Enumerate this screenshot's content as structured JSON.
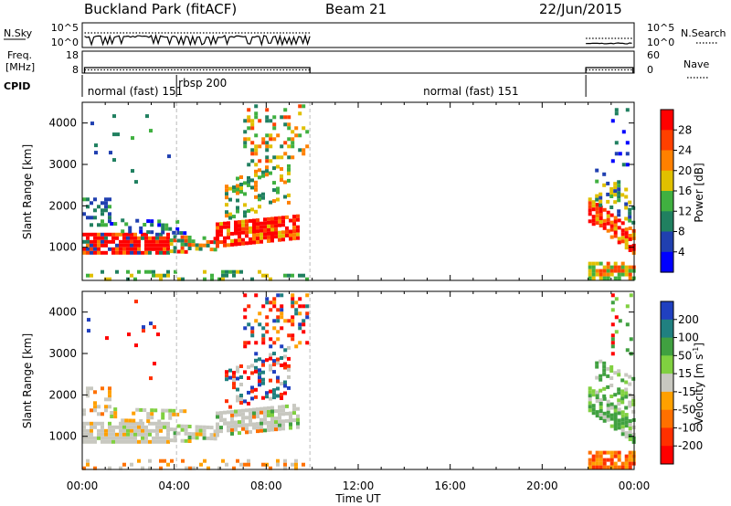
{
  "header": {
    "site": "Buckland Park (fitACF)",
    "beam": "Beam 21",
    "date": "22/Jun/2015"
  },
  "side_labels": {
    "nsky": "N.Sky",
    "freq_line1": "Freq.",
    "freq_line2": "[MHz]",
    "cpid": "CPID",
    "nsearch": "N.Search",
    "nave": "Nave"
  },
  "small_axes": {
    "noise_left_top": "10^5",
    "noise_left_bottom": "10^0",
    "noise_right_top": "10^5",
    "noise_right_bottom": "10^0",
    "freq_left_top": "18",
    "freq_left_bottom": "8",
    "nave_right_top": "60",
    "nave_right_bottom": "0"
  },
  "cpid_labels": [
    {
      "text": "normal (fast) 151",
      "t": 0.15
    },
    {
      "text": "rbsp 200",
      "t": 4.1
    },
    {
      "text": "normal (fast) 151",
      "t": 18.6
    }
  ],
  "colors": {
    "power": [
      "#0000ff",
      "#2040b0",
      "#208060",
      "#40b040",
      "#e0c000",
      "#ff8000",
      "#ff4000",
      "#ff0000"
    ],
    "velocity": [
      "#2040c0",
      "#208080",
      "#40a040",
      "#80d040",
      "#c8c8c0",
      "#ffa000",
      "#ff7000",
      "#ff3000",
      "#ff0000"
    ]
  },
  "chart_data": [
    {
      "type": "heatmap",
      "panel": "power",
      "ylabel": "Slant Range [km]",
      "yticks": [
        "1000",
        "2000",
        "3000",
        "4000"
      ],
      "ylim": [
        200,
        4500
      ],
      "xlim_hours": [
        0,
        24
      ],
      "colorbar_label": "Power [dB]",
      "colorbar_ticks": [
        "4",
        "8",
        "12",
        "16",
        "20",
        "24",
        "28"
      ],
      "data_gap_hours": [
        9.9,
        21.9
      ]
    },
    {
      "type": "heatmap",
      "panel": "velocity",
      "ylabel": "Slant Range [km]",
      "yticks": [
        "1000",
        "2000",
        "3000",
        "4000"
      ],
      "ylim": [
        200,
        4500
      ],
      "xlim_hours": [
        0,
        24
      ],
      "colorbar_label": "Velocity [m s",
      "colorbar_label_sup": "-1",
      "colorbar_label_end": "]",
      "colorbar_ticks": [
        "200",
        "100",
        "50",
        "15",
        "-15",
        "-50",
        "-100",
        "-200"
      ],
      "data_gap_hours": [
        9.9,
        21.9
      ]
    }
  ],
  "time_axis": {
    "ticks": [
      "00:00",
      "04:00",
      "08:00",
      "12:00",
      "16:00",
      "20:00",
      "00:00"
    ],
    "label": "Time UT"
  }
}
